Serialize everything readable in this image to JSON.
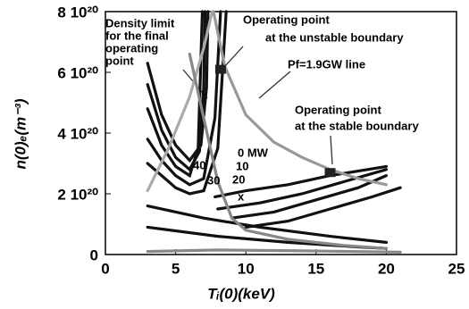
{
  "chart_data": {
    "type": "contour",
    "x_label": "Tᵢ(0)(keV)",
    "y_label": "n(0)ₑ(m⁻³)",
    "xlim": [
      0,
      25
    ],
    "xticks": [
      0,
      5,
      10,
      15,
      20,
      25
    ],
    "ylim": [
      0,
      8e+20
    ],
    "yticks": [
      0,
      {
        "value": 2e+20,
        "label": "2 10²⁰"
      },
      {
        "value": 4e+20,
        "label": "4 10²⁰"
      },
      {
        "value": 6e+20,
        "label": "6 10²⁰"
      },
      {
        "value": 8e+20,
        "label": "8 10²⁰"
      }
    ],
    "annotations": {
      "density_limit": [
        "Density limit",
        "for the final",
        "operating",
        "point"
      ],
      "unstable": [
        "Operating point",
        "at the unstable boundary"
      ],
      "pf_line": "Pf=1.9GW line",
      "stable": [
        "Operating point",
        "at the stable boundary"
      ],
      "contour_labels": [
        "0 MW",
        "10",
        "20",
        "30",
        "40",
        "x"
      ]
    },
    "operating_points": {
      "x": [
        8.2,
        16
      ],
      "y": [
        6.1e+20,
        2.7e+20
      ],
      "color": "#222"
    },
    "series": [
      {
        "color": "#111",
        "x": [
          3,
          4,
          5,
          6,
          6.8,
          7.2,
          7.3
        ],
        "values": [
          6.3e+20,
          4.6e+20,
          3.6e+20,
          3.1e+20,
          3.6e+20,
          5.5e+20,
          8e+20
        ]
      },
      {
        "color": "#111",
        "x": [
          3,
          4,
          5,
          6,
          6.7,
          7,
          7.1
        ],
        "values": [
          5.6e+20,
          4.1e+20,
          3.2e+20,
          2.8e+20,
          3.4e+20,
          5.5e+20,
          8e+20
        ]
      },
      {
        "color": "#111",
        "x": [
          3,
          4,
          5,
          6,
          6.6,
          6.9
        ],
        "values": [
          4.8e+20,
          3.6e+20,
          2.9e+20,
          2.6e+20,
          3.5e+20,
          8e+20
        ]
      },
      {
        "color": "#111",
        "x": [
          3,
          4,
          5,
          6,
          7,
          7.8,
          8.2
        ],
        "values": [
          3.8e+20,
          3.1e+20,
          2.6e+20,
          2.3e+20,
          2.5e+20,
          4.5e+20,
          8e+20
        ]
      },
      {
        "color": "#111",
        "x": [
          3,
          4,
          5,
          6,
          7,
          8,
          8.6
        ],
        "values": [
          3e+20,
          2.6e+20,
          2.2e+20,
          2e+20,
          2.1e+20,
          3.5e+20,
          8e+20
        ]
      },
      {
        "color": "#111",
        "x": [
          7.8,
          10,
          13,
          16,
          20
        ],
        "values": [
          1.9e+20,
          2.1e+20,
          2.3e+20,
          2.6e+20,
          2.9e+20
        ]
      },
      {
        "color": "#111",
        "x": [
          8,
          11,
          14,
          17,
          20
        ],
        "values": [
          1.5e+20,
          1.7e+20,
          2e+20,
          2.4e+20,
          2.8e+20
        ]
      },
      {
        "color": "#111",
        "x": [
          9,
          12,
          15,
          18,
          20
        ],
        "values": [
          1.2e+20,
          1.4e+20,
          1.8e+20,
          2.2e+20,
          2.6e+20
        ]
      },
      {
        "color": "#111",
        "x": [
          10,
          13,
          16,
          19,
          21
        ],
        "values": [
          9e+19,
          1.1e+20,
          1.5e+20,
          1.9e+20,
          2.2e+20
        ]
      },
      {
        "color": "#111",
        "x": [
          3,
          7,
          11,
          16,
          20
        ],
        "values": [
          1.6e+20,
          1.2e+20,
          9e+19,
          6e+19,
          4e+19
        ]
      },
      {
        "color": "#111",
        "x": [
          3,
          8,
          13,
          18,
          20
        ],
        "values": [
          9e+19,
          6e+19,
          4e+19,
          2.5e+19,
          2e+19
        ]
      },
      {
        "color": "#aaa",
        "x": [
          3,
          4.5,
          6,
          7,
          7.6
        ],
        "values": [
          2.1e+20,
          3.5e+20,
          5.2e+20,
          6.8e+20,
          8e+20
        ]
      },
      {
        "color": "#999",
        "x": [
          7.7,
          8.5,
          10,
          12,
          14,
          16,
          18,
          20
        ],
        "values": [
          8e+20,
          6.2e+20,
          4.6e+20,
          3.7e+20,
          3.2e+20,
          2.8e+20,
          2.5e+20,
          2.3e+20
        ]
      },
      {
        "color": "#888",
        "x": [
          6,
          7,
          8,
          9,
          10,
          13,
          17,
          20
        ],
        "values": [
          6.6e+20,
          4.5e+20,
          2.4e+20,
          1.2e+20,
          8e+19,
          5e+19,
          3e+19,
          2e+19
        ]
      },
      {
        "color": "#888",
        "x": [
          3,
          8,
          14,
          21
        ],
        "values": [
          1e+19,
          1.5e+19,
          1.2e+19,
          8e+18
        ]
      }
    ]
  }
}
